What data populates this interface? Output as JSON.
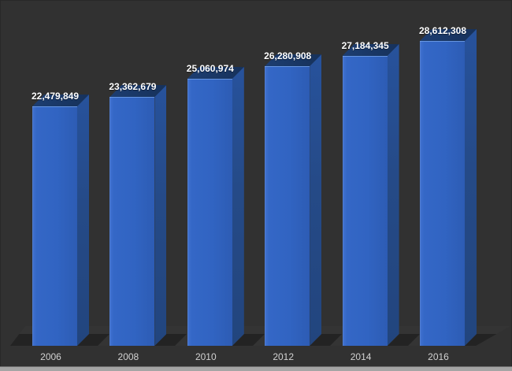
{
  "chart_data": {
    "type": "bar",
    "style": "3d-column",
    "title": "",
    "xlabel": "",
    "ylabel": "",
    "categories": [
      "2006",
      "2008",
      "2010",
      "2012",
      "2014",
      "2016"
    ],
    "values": [
      22479849,
      23362679,
      25060974,
      26280908,
      27184345,
      28612308
    ],
    "value_labels": [
      "22,479,849",
      "23,362,679",
      "25,060,974",
      "26,280,908",
      "27,184,345",
      "28,612,308"
    ],
    "ylim": [
      0,
      29500000
    ],
    "grid": false,
    "legend_position": "none",
    "colors": {
      "background": "#313131",
      "floor": "#343434",
      "floor_shadow": "#232323",
      "bar_front": "#3164c2",
      "bar_side": "#254a87",
      "bar_top": "#1a3763",
      "value_label": "#ffffff",
      "category_label": "#d2d2d2",
      "bottom_strip": "#a5a5a5"
    }
  }
}
